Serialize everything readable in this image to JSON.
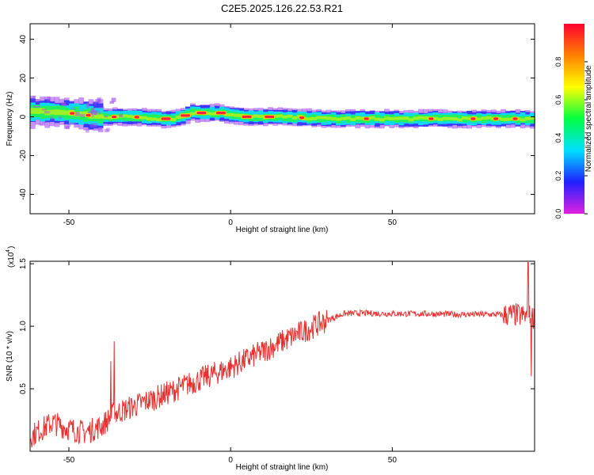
{
  "title": "C2E5.2025.126.22.53.R21",
  "chart_data": [
    {
      "type": "heatmap",
      "xlabel": "Height of straight line (km)",
      "ylabel": "Frequency (Hz)",
      "xlim": [
        -62,
        94
      ],
      "ylim": [
        -50,
        48
      ],
      "xticks": [
        -50,
        0,
        50
      ],
      "yticks": [
        -40,
        -20,
        0,
        20,
        40
      ],
      "colorbar": {
        "label": "Normalized spectral amplitude",
        "range": [
          0,
          1
        ],
        "ticks": [
          "0.0",
          "0.2",
          "0.4",
          "0.6",
          "0.8"
        ],
        "colors": [
          "#e020e0",
          "#2020ff",
          "#00e0ff",
          "#00ff40",
          "#ffff00",
          "#ff8000",
          "#ff0030"
        ]
      },
      "band_center_hz": [
        [
          -62,
          3
        ],
        [
          -50,
          2
        ],
        [
          -40,
          0
        ],
        [
          -30,
          0
        ],
        [
          -22,
          -1
        ],
        [
          -18,
          -1
        ],
        [
          -15,
          0
        ],
        [
          -12,
          2
        ],
        [
          -8,
          2
        ],
        [
          -3,
          2
        ],
        [
          0,
          1
        ],
        [
          5,
          0
        ],
        [
          15,
          0
        ],
        [
          30,
          -1
        ],
        [
          50,
          -1
        ],
        [
          70,
          -1
        ],
        [
          94,
          -1
        ]
      ],
      "peaks_km": [
        -49,
        -44,
        -36,
        -29,
        -20,
        -14,
        -9,
        -3,
        5,
        12,
        22,
        42,
        62,
        75,
        82,
        88
      ]
    },
    {
      "type": "line",
      "xlabel": "Height of straight line (km)",
      "ylabel": "SNR (10 * v/v)",
      "scale_label": "(x10",
      "scale_exponent": "4",
      "xlim": [
        -62,
        94
      ],
      "ylim": [
        0,
        15200
      ],
      "xticks": [
        -50,
        0,
        50
      ],
      "yticks": [
        5000,
        10000,
        15000
      ],
      "ytick_labels": [
        "0.5",
        "1.0",
        "1.5"
      ],
      "color": "#e83030",
      "trend": [
        [
          -62,
          1200
        ],
        [
          -55,
          2300
        ],
        [
          -50,
          1800
        ],
        [
          -45,
          1500
        ],
        [
          -40,
          2000
        ],
        [
          -36,
          3000
        ],
        [
          -30,
          3600
        ],
        [
          -20,
          4600
        ],
        [
          -10,
          5700
        ],
        [
          0,
          6700
        ],
        [
          10,
          8000
        ],
        [
          20,
          9300
        ],
        [
          30,
          10500
        ],
        [
          35,
          11000
        ],
        [
          40,
          11050
        ],
        [
          50,
          11000
        ],
        [
          60,
          11000
        ],
        [
          70,
          10950
        ],
        [
          80,
          10950
        ],
        [
          88,
          10900
        ],
        [
          94,
          10700
        ]
      ],
      "spikes": [
        [
          -36,
          8800
        ],
        [
          -37,
          7200
        ],
        [
          92,
          15100
        ],
        [
          93,
          6000
        ]
      ]
    }
  ]
}
